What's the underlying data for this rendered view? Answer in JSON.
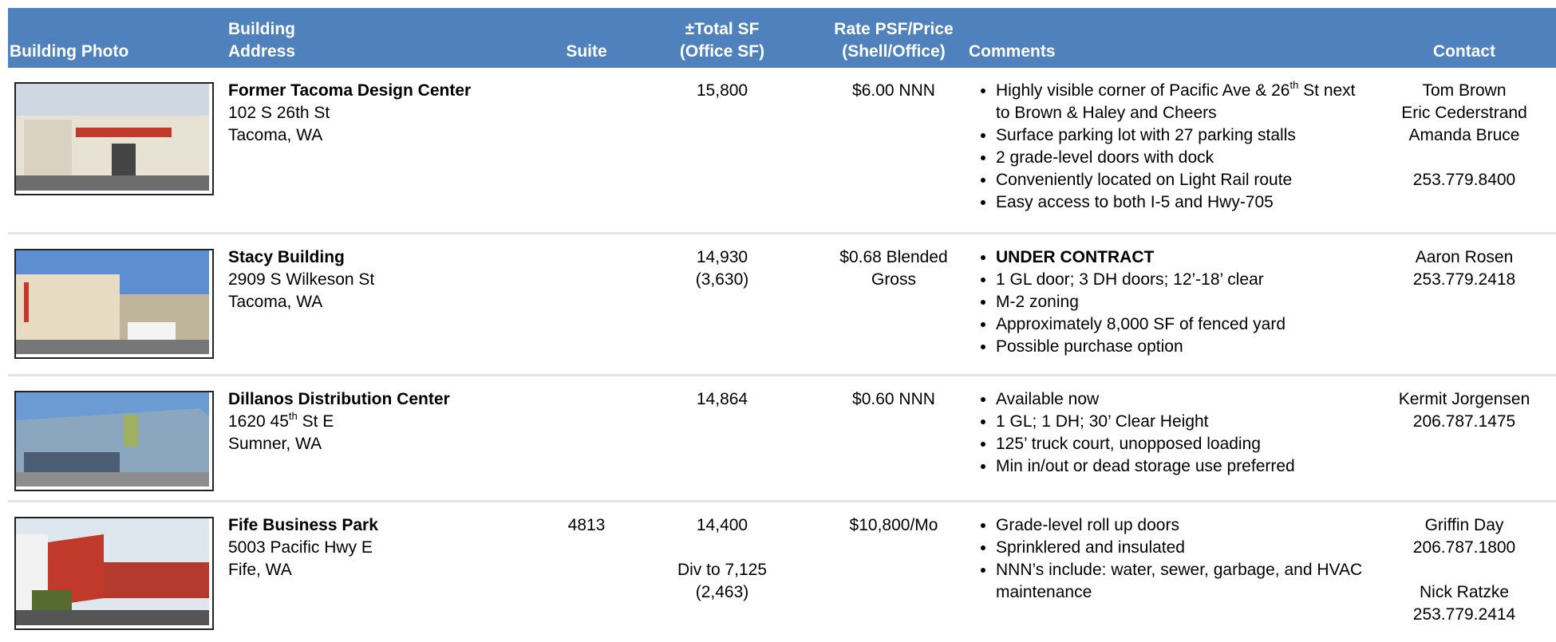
{
  "header": {
    "columns": [
      [
        "Building Photo"
      ],
      [
        "Building",
        "Address"
      ],
      [
        "Suite"
      ],
      [
        "±Total SF",
        "(Office SF)"
      ],
      [
        "Rate PSF/Price",
        "(Shell/Office)"
      ],
      [
        "Comments"
      ],
      [
        "Contact"
      ]
    ]
  },
  "listings": [
    {
      "name": "Former Tacoma Design Center",
      "address": [
        "102 S 26th St",
        "Tacoma, WA"
      ],
      "suite": null,
      "total_sf": [
        [
          "15,800"
        ]
      ],
      "rate": "$6.00 NNN",
      "comments": [
        [
          "Highly visible corner of Pacific Ave & 26",
          "th",
          " St next to Brown & Haley and Cheers"
        ],
        "Surface parking lot with 27 parking stalls",
        "2 grade-level doors with dock",
        "Conveniently located on Light Rail route",
        "Easy access to both I-5 and Hwy-705"
      ],
      "bold_comments": [],
      "contact": [
        [
          "Tom Brown",
          "Eric Cederstrand",
          "Amanda Bruce"
        ],
        [
          "253.779.8400"
        ]
      ]
    },
    {
      "name": "Stacy Building",
      "address": [
        "2909 S Wilkeson St",
        "Tacoma, WA"
      ],
      "suite": null,
      "total_sf": [
        [
          "14,930",
          "(3,630)"
        ]
      ],
      "rate": "$0.68 Blended Gross",
      "comments": [
        "UNDER CONTRACT",
        "1 GL door; 3 DH doors; 12’-18’ clear",
        "M-2 zoning",
        "Approximately 8,000 SF of fenced yard",
        "Possible purchase option"
      ],
      "bold_comments": [
        0
      ],
      "contact": [
        [
          "Aaron Rosen",
          "253.779.2418"
        ]
      ]
    },
    {
      "name": "Dillanos Distribution Center",
      "address": [
        [
          "1620 45",
          "th",
          " St E"
        ],
        "Sumner, WA"
      ],
      "suite": null,
      "total_sf": [
        [
          "14,864"
        ]
      ],
      "rate": "$0.60 NNN",
      "comments": [
        "Available now",
        "1 GL; 1 DH; 30’ Clear Height",
        "125’ truck court, unopposed loading",
        "Min in/out or dead storage use preferred"
      ],
      "bold_comments": [],
      "contact": [
        [
          "Kermit Jorgensen",
          "206.787.1475"
        ]
      ]
    },
    {
      "name": "Fife Business Park",
      "address": [
        "5003 Pacific Hwy E",
        "Fife, WA"
      ],
      "suite": "4813",
      "total_sf": [
        [
          "14,400"
        ],
        [
          "Div to 7,125",
          "(2,463)"
        ]
      ],
      "rate": "$10,800/Mo",
      "comments": [
        "Grade-level roll up doors",
        "Sprinklered and insulated",
        "NNN’s include: water, sewer, garbage, and HVAC maintenance"
      ],
      "bold_comments": [],
      "contact": [
        [
          "Griffin Day",
          "206.787.1800"
        ],
        [
          "Nick Ratzke",
          "253.779.2414"
        ]
      ]
    }
  ]
}
